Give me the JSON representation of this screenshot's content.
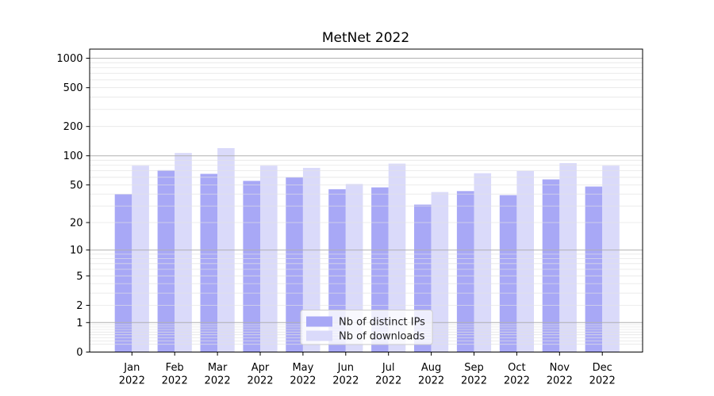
{
  "figure": {
    "background": "#ffffff"
  },
  "chart_data": {
    "type": "bar",
    "title": "MetNet 2022",
    "categories": [
      "Jan",
      "Feb",
      "Mar",
      "Apr",
      "May",
      "Jun",
      "Jul",
      "Aug",
      "Sep",
      "Oct",
      "Nov",
      "Dec"
    ],
    "category_year": "2022",
    "series": [
      {
        "name": "Nb of distinct IPs",
        "color": "#a8a8f6",
        "values": [
          40,
          71,
          65,
          55,
          60,
          45,
          47,
          31,
          43,
          39,
          57,
          48
        ]
      },
      {
        "name": "Nb of downloads",
        "color": "#dadafa",
        "values": [
          79,
          107,
          120,
          79,
          75,
          51,
          83,
          42,
          66,
          70,
          84,
          79
        ]
      }
    ],
    "xlabel": "",
    "ylabel": "",
    "yscale": "log(1+y)",
    "ylim": [
      0,
      1240
    ],
    "yticks": [
      1000,
      500,
      200,
      100,
      50,
      20,
      10,
      5,
      2,
      1,
      0
    ],
    "grid": {
      "on": true,
      "major_at": [
        1,
        10,
        100,
        1000
      ],
      "minor_decades": [
        0.1,
        1,
        10,
        100
      ],
      "major_color": "#b0b0b0",
      "minor_color": "#e2e2e2"
    },
    "legend": {
      "position": "lower center",
      "background": "rgba(255,255,255,0.8)",
      "border_color": "#cccccc"
    },
    "axis_color": "#000000",
    "text_color": "#000000"
  }
}
